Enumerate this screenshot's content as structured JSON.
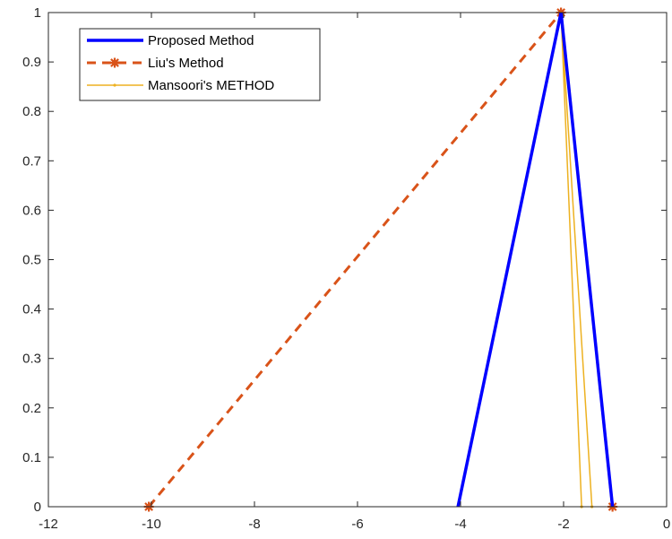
{
  "chart_data": {
    "type": "line",
    "title": "",
    "xlabel": "",
    "ylabel": "",
    "xlim": [
      -12,
      0
    ],
    "ylim": [
      0,
      1
    ],
    "grid": false,
    "legend_position": "top-left",
    "x_ticks": [
      -12,
      -10,
      -8,
      -6,
      -4,
      -2,
      0
    ],
    "y_ticks": [
      0,
      0.1,
      0.2,
      0.3,
      0.4,
      0.5,
      0.6,
      0.7,
      0.8,
      0.9,
      1
    ],
    "x_tick_labels": [
      "-12",
      "-10",
      "-8",
      "-6",
      "-4",
      "-2",
      "0"
    ],
    "y_tick_labels": [
      "0",
      "0.1",
      "0.2",
      "0.3",
      "0.4",
      "0.5",
      "0.6",
      "0.7",
      "0.8",
      "0.9",
      "1"
    ],
    "series": [
      {
        "name": "Proposed Method",
        "color": "#0000ff",
        "style": "solid",
        "marker": "none",
        "x": [
          -4.05,
          -2.05,
          -1.05
        ],
        "y": [
          0,
          1,
          0
        ]
      },
      {
        "name": "Liu's Method",
        "color": "#d95319",
        "style": "dashed",
        "marker": "asterisk",
        "x": [
          -10.05,
          -2.05,
          -1.05
        ],
        "y": [
          0,
          1,
          0
        ]
      },
      {
        "name": "Mansoori's METHOD",
        "color": "#edb120",
        "style": "solid",
        "marker": "point",
        "x": [
          -1.65,
          -2.05,
          -1.45
        ],
        "y": [
          0,
          1,
          0
        ]
      }
    ]
  }
}
